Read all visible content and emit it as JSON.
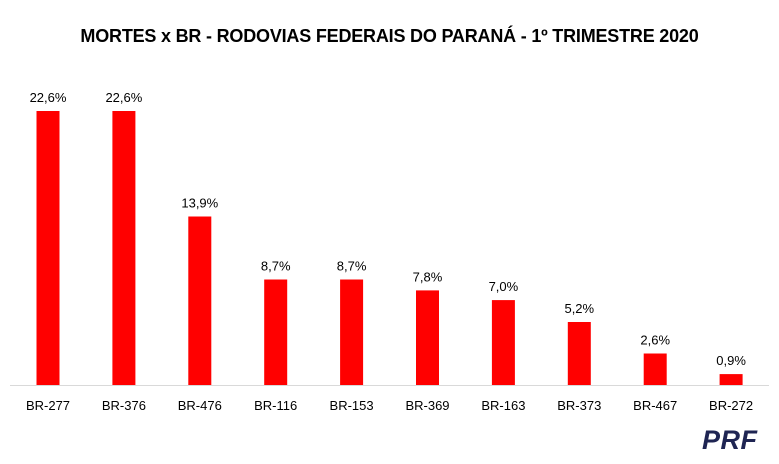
{
  "chart_data": {
    "type": "bar",
    "title": "MORTES x BR - RODOVIAS FEDERAIS DO PARANÁ - 1º TRIMESTRE 2020",
    "categories": [
      "BR-277",
      "BR-376",
      "BR-476",
      "BR-116",
      "BR-153",
      "BR-369",
      "BR-163",
      "BR-373",
      "BR-467",
      "BR-272"
    ],
    "values": [
      22.6,
      22.6,
      13.9,
      8.7,
      8.7,
      7.8,
      7.0,
      5.2,
      2.6,
      0.9
    ],
    "value_labels": [
      "22,6%",
      "22,6%",
      "13,9%",
      "8,7%",
      "8,7%",
      "7,8%",
      "7,0%",
      "5,2%",
      "2,6%",
      "0,9%"
    ],
    "unit": "%",
    "ylim": [
      0,
      22.6
    ],
    "grid": false,
    "legend": "none",
    "bar_color": "#ff0000"
  },
  "brand": {
    "logo_text": "PRF",
    "color": "#1f2553"
  }
}
